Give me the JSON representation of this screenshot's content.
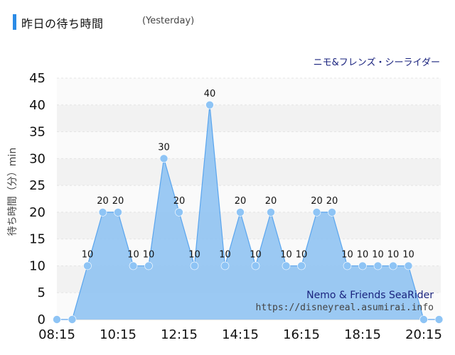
{
  "header": {
    "title": "昨日の待ち時間",
    "subtitle": "(Yesterday)"
  },
  "colors": {
    "accent": "#2b8be6",
    "area_fill": "#90c3f2",
    "area_stroke": "#5aa5ee",
    "point_fill": "#8ec4f5",
    "band_dark": "#f2f2f2",
    "band_light": "#fafafa"
  },
  "chart_data": {
    "type": "area",
    "title": "ニモ&フレンズ・シーライダー",
    "ylabel": "待ち時間（分）min",
    "xlabel": "",
    "ylim": [
      0,
      45
    ],
    "yticks": [
      0,
      5,
      10,
      15,
      20,
      25,
      30,
      35,
      40,
      45
    ],
    "xtick_labels": [
      "08:15",
      "10:15",
      "12:15",
      "14:15",
      "16:15",
      "18:15",
      "20:15"
    ],
    "grid": true,
    "series": [
      {
        "x": [
          "08:15",
          "08:45",
          "09:15",
          "09:45",
          "10:15",
          "10:45",
          "11:15",
          "11:45",
          "12:15",
          "12:45",
          "13:15",
          "13:45",
          "14:15",
          "14:45",
          "15:15",
          "15:45",
          "16:15",
          "16:45",
          "17:15",
          "17:45",
          "18:15",
          "18:45",
          "19:15",
          "19:45",
          "20:15",
          "20:45"
        ],
        "values": [
          0,
          0,
          10,
          20,
          20,
          10,
          10,
          30,
          20,
          10,
          40,
          10,
          20,
          10,
          20,
          10,
          10,
          20,
          20,
          10,
          10,
          10,
          10,
          10,
          0,
          0
        ],
        "data_labels": [
          "",
          "",
          "10",
          "20",
          "20",
          "10",
          "10",
          "30",
          "20",
          "10",
          "40",
          "10",
          "20",
          "10",
          "20",
          "10",
          "10",
          "20",
          "20",
          "10",
          "10",
          "10",
          "10",
          "10",
          "",
          ""
        ]
      }
    ]
  },
  "watermark": {
    "name_en": "Nemo & Friends SeaRider",
    "url": "https://disneyreal.asumirai.info"
  }
}
